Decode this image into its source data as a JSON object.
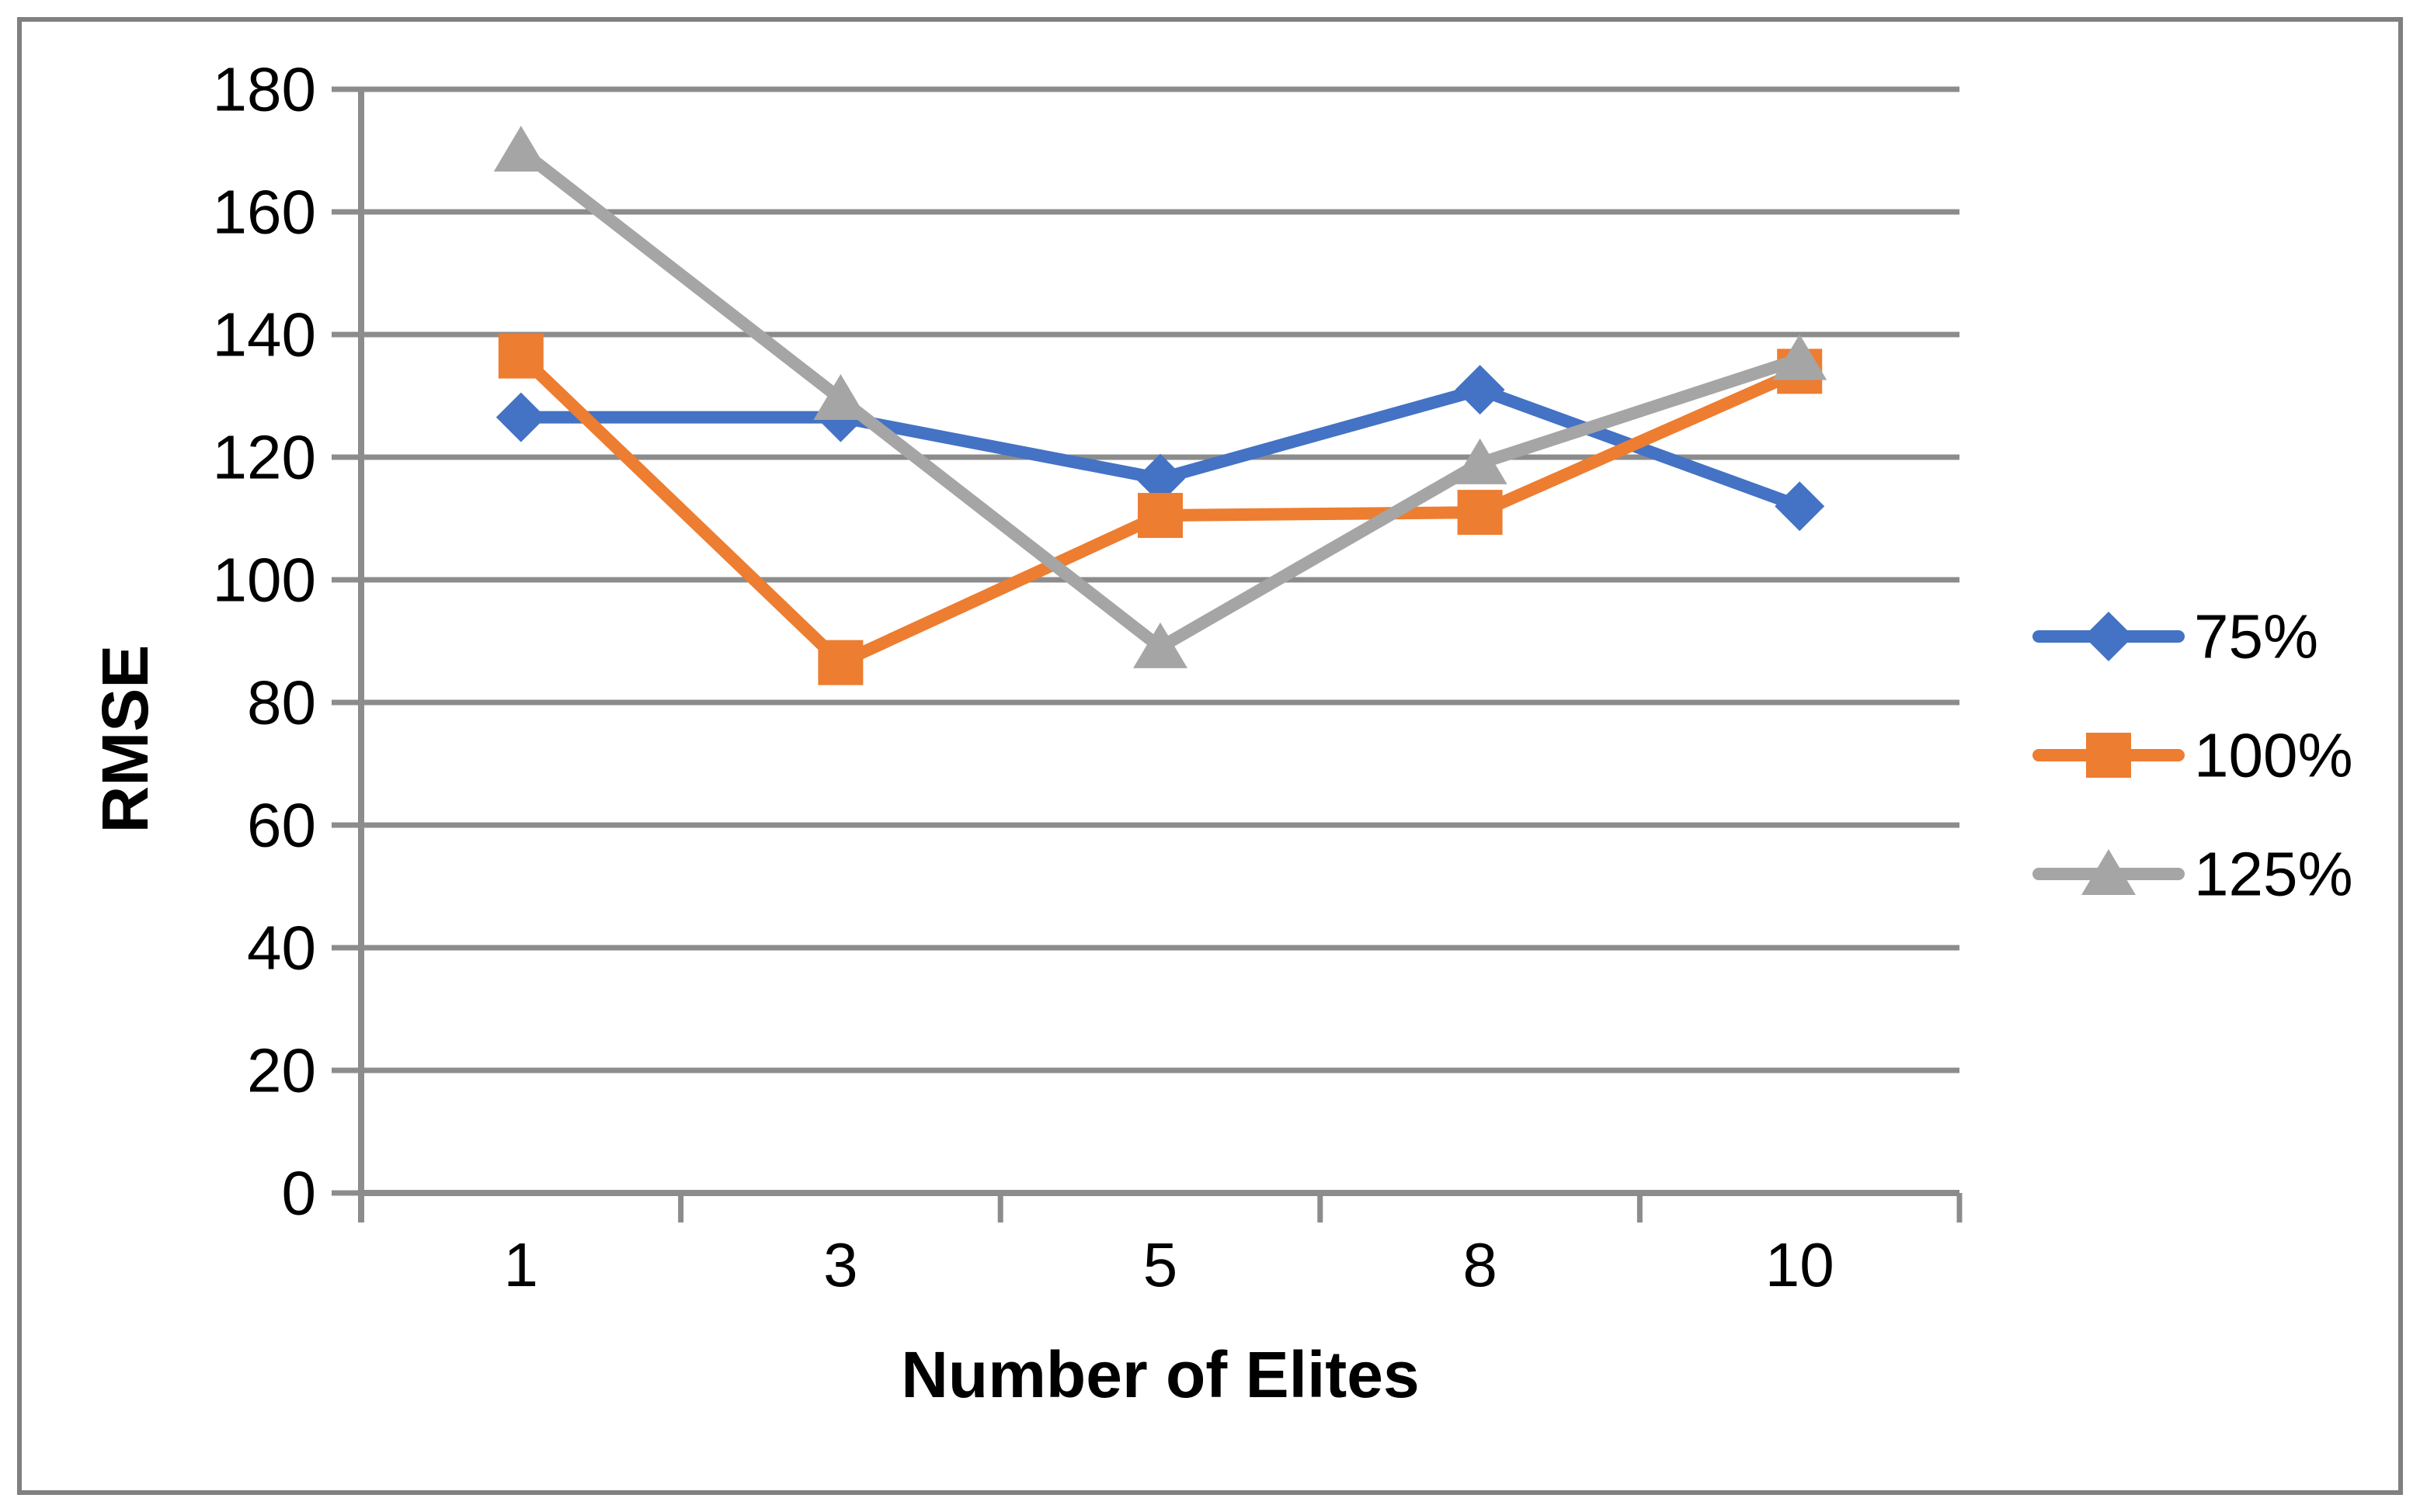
{
  "chart_data": {
    "type": "line",
    "title": "",
    "xlabel": "Number of Elites",
    "ylabel": "RMSE",
    "categories": [
      "1",
      "3",
      "5",
      "8",
      "10"
    ],
    "series": [
      {
        "name": "75%",
        "color": "#4472C4",
        "marker": "diamond",
        "values": [
          126.5,
          126.5,
          116.5,
          131,
          112
        ]
      },
      {
        "name": "100%",
        "color": "#ED7D31",
        "marker": "square",
        "values": [
          136.5,
          86.5,
          110.5,
          111,
          134
        ]
      },
      {
        "name": "125%",
        "color": "#A5A5A5",
        "marker": "triangle",
        "values": [
          170,
          129.5,
          89,
          119,
          136
        ]
      }
    ],
    "ylim": [
      0,
      180
    ],
    "ytick_step": 20,
    "grid": true,
    "legend_position": "right",
    "grid_color": "#8C8C8C",
    "axis_color": "#8C8C8C",
    "text_color": "#000000",
    "figure_border_color": "#808080"
  }
}
